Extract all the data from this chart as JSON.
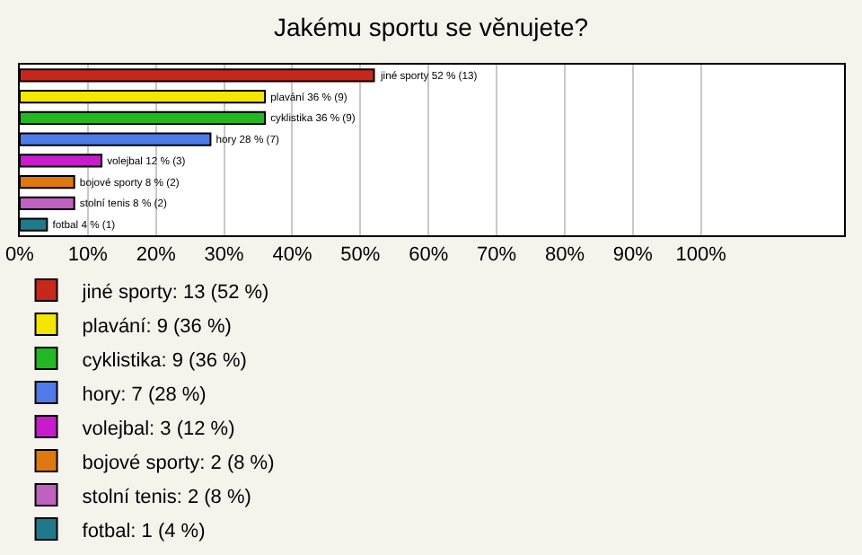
{
  "chart_data": {
    "type": "bar",
    "orientation": "horizontal",
    "title": "Jakému sportu se věnujete?",
    "categories": [
      null,
      null,
      null,
      null,
      null,
      null,
      null,
      null
    ],
    "series": [
      {
        "name": "jiné sporty: 13 (52 %)",
        "color": "#c8281c",
        "values": [
          52,
          null,
          null,
          null,
          null,
          null,
          null,
          null
        ],
        "value_labels": [
          "jiné sporty 52 % (13)",
          null,
          null,
          null,
          null,
          null,
          null,
          null
        ]
      },
      {
        "name": "plavání: 9 (36 %)",
        "color": "#f5e600",
        "values": [
          null,
          36,
          null,
          null,
          null,
          null,
          null,
          null
        ],
        "value_labels": [
          null,
          "plavání 36 % (9)",
          null,
          null,
          null,
          null,
          null,
          null
        ]
      },
      {
        "name": "cyklistika: 9 (36 %)",
        "color": "#22b822",
        "values": [
          null,
          null,
          36,
          null,
          null,
          null,
          null,
          null
        ],
        "value_labels": [
          null,
          null,
          "cyklistika 36 % (9)",
          null,
          null,
          null,
          null,
          null
        ]
      },
      {
        "name": "hory: 7 (28 %)",
        "color": "#4f7be8",
        "values": [
          null,
          null,
          null,
          28,
          null,
          null,
          null,
          null
        ],
        "value_labels": [
          null,
          null,
          null,
          "hory 28 % (7)",
          null,
          null,
          null,
          null
        ]
      },
      {
        "name": "volejbal: 3 (12 %)",
        "color": "#c81ccc",
        "values": [
          null,
          null,
          null,
          null,
          12,
          null,
          null,
          null
        ],
        "value_labels": [
          null,
          null,
          null,
          null,
          "volejbal 12 % (3)",
          null,
          null,
          null
        ]
      },
      {
        "name": "bojové sporty: 2 (8 %)",
        "color": "#e07810",
        "values": [
          null,
          null,
          null,
          null,
          null,
          8,
          null,
          null
        ],
        "value_labels": [
          null,
          null,
          null,
          null,
          null,
          "bojové sporty 8 % (2)",
          null,
          null
        ]
      },
      {
        "name": "stolní tenis: 2 (8 %)",
        "color": "#c060c0",
        "values": [
          null,
          null,
          null,
          null,
          null,
          null,
          8,
          null
        ],
        "value_labels": [
          null,
          null,
          null,
          null,
          null,
          null,
          "stolní tenis 8 % (2)",
          null
        ]
      },
      {
        "name": "fotbal: 1 (4 %)",
        "color": "#1f7a8c",
        "values": [
          null,
          null,
          null,
          null,
          null,
          null,
          null,
          4
        ],
        "value_labels": [
          null,
          null,
          null,
          null,
          null,
          null,
          null,
          "fotbal 4 % (1)"
        ]
      }
    ],
    "xlim": [
      0,
      121
    ],
    "xticks": [
      {
        "value": 0,
        "label": "0%"
      },
      {
        "value": 10,
        "label": "10%"
      },
      {
        "value": 20,
        "label": "20%"
      },
      {
        "value": 30,
        "label": "30%"
      },
      {
        "value": 40,
        "label": "40%"
      },
      {
        "value": 50,
        "label": "50%"
      },
      {
        "value": 60,
        "label": "60%"
      },
      {
        "value": 70,
        "label": "70%"
      },
      {
        "value": 80,
        "label": "80%"
      },
      {
        "value": 90,
        "label": "90%"
      },
      {
        "value": 100,
        "label": "100%"
      }
    ],
    "grid": "x",
    "legend": "bottom",
    "tick_labels": "x"
  }
}
